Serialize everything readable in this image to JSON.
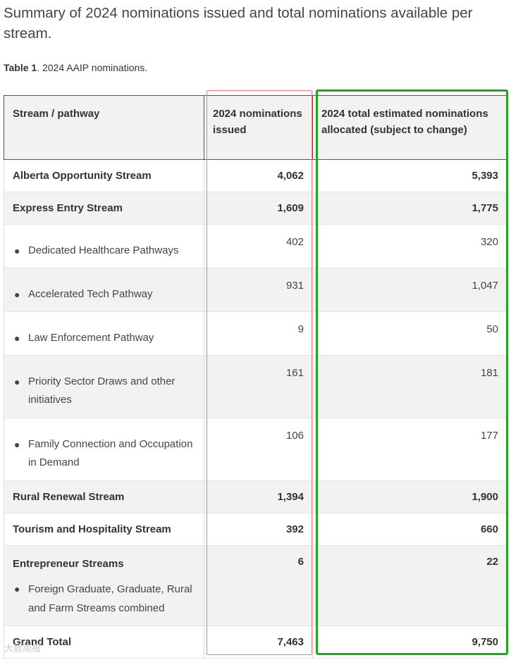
{
  "heading": "Summary of 2024 nominations issued and total nominations available per stream.",
  "caption": {
    "label": "Table 1",
    "text": ". 2024 AAIP nominations."
  },
  "table": {
    "headers": {
      "col1": "Stream / pathway",
      "col2": "2024 nominations issued",
      "col3": "2024 total estimated nominations allocated (subject to change)"
    },
    "rows": [
      {
        "label": "Alberta Opportunity Stream",
        "issued": "4,062",
        "allocated": "5,393"
      },
      {
        "label": "Express Entry Stream",
        "issued": "1,609",
        "allocated": "1,775"
      },
      {
        "label": "Dedicated Healthcare Pathways",
        "issued": "402",
        "allocated": "320"
      },
      {
        "label": "Accelerated Tech Pathway",
        "issued": "931",
        "allocated": "1,047"
      },
      {
        "label": "Law Enforcement Pathway",
        "issued": "9",
        "allocated": "50"
      },
      {
        "label": "Priority Sector Draws and other initiatives",
        "issued": "161",
        "allocated": "181"
      },
      {
        "label": "Family Connection and Occupation in Demand",
        "issued": "106",
        "allocated": "177"
      },
      {
        "label": "Rural Renewal Stream",
        "issued": "1,394",
        "allocated": "1,900"
      },
      {
        "label": "Tourism and Hospitality Stream",
        "issued": "392",
        "allocated": "660"
      },
      {
        "label": "Entrepreneur Streams",
        "sublabel": "Foreign Graduate, Graduate, Rural and Farm Streams combined",
        "issued": "6",
        "allocated": "22"
      },
      {
        "label": "Grand Total",
        "issued": "7,463",
        "allocated": "9,750"
      }
    ]
  },
  "watermark": "大数简报",
  "colors": {
    "highlight_issued": "#e87d7d",
    "highlight_allocated": "#22a322",
    "header_bg": "#f2f2f2"
  }
}
